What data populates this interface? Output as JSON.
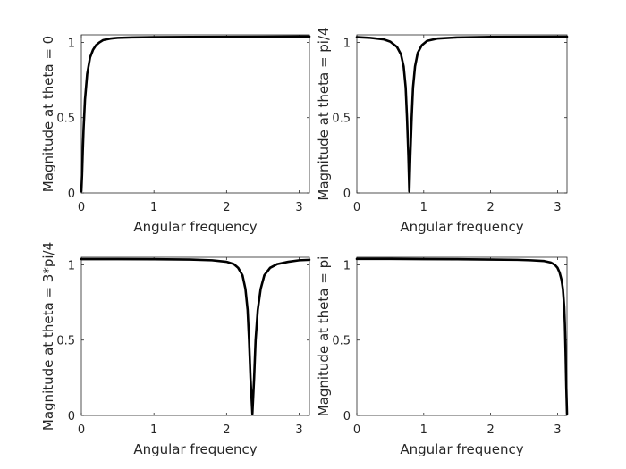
{
  "chart_data": [
    {
      "type": "line",
      "xlabel": "Angular frequency",
      "ylabel": "Magnitude at theta = 0",
      "xlim": [
        0,
        3.1416
      ],
      "ylim": [
        0,
        1.05
      ],
      "xticks": [
        0,
        1,
        2,
        3
      ],
      "yticks": [
        0,
        0.5,
        1
      ],
      "xtick_labels": [
        "0",
        "1",
        "2",
        "3"
      ],
      "ytick_labels": [
        "0",
        "0.5",
        "1"
      ],
      "grid": false,
      "series": [
        {
          "x": [
            0,
            0.01,
            0.02,
            0.03,
            0.05,
            0.08,
            0.12,
            0.16,
            0.2,
            0.25,
            0.3,
            0.4,
            0.5,
            0.7,
            1.0,
            1.5,
            2.0,
            2.5,
            3.0,
            3.1416
          ],
          "y": [
            0.01,
            0.12,
            0.28,
            0.42,
            0.62,
            0.79,
            0.9,
            0.95,
            0.98,
            1.0,
            1.015,
            1.025,
            1.03,
            1.033,
            1.035,
            1.036,
            1.037,
            1.038,
            1.039,
            1.039
          ]
        }
      ]
    },
    {
      "type": "line",
      "xlabel": "Angular frequency",
      "ylabel": "Magnitude at theta = pi/4",
      "xlim": [
        0,
        3.1416
      ],
      "ylim": [
        0,
        1.05
      ],
      "xticks": [
        0,
        1,
        2,
        3
      ],
      "yticks": [
        0,
        0.5,
        1
      ],
      "xtick_labels": [
        "0",
        "1",
        "2",
        "3"
      ],
      "ytick_labels": [
        "0",
        "0.5",
        "1"
      ],
      "grid": false,
      "series": [
        {
          "x": [
            0,
            0.2,
            0.4,
            0.5,
            0.6,
            0.66,
            0.7,
            0.73,
            0.75,
            0.77,
            0.785,
            0.8,
            0.82,
            0.84,
            0.87,
            0.91,
            0.97,
            1.05,
            1.2,
            1.5,
            2.0,
            2.5,
            3.0,
            3.1416
          ],
          "y": [
            1.035,
            1.03,
            1.02,
            1.005,
            0.97,
            0.92,
            0.84,
            0.7,
            0.5,
            0.25,
            0.01,
            0.25,
            0.5,
            0.7,
            0.84,
            0.93,
            0.98,
            1.01,
            1.025,
            1.033,
            1.036,
            1.037,
            1.038,
            1.038
          ]
        }
      ]
    },
    {
      "type": "line",
      "xlabel": "Angular frequency",
      "ylabel": "Magnitude at theta = 3*pi/4",
      "xlim": [
        0,
        3.1416
      ],
      "ylim": [
        0,
        1.05
      ],
      "xticks": [
        0,
        1,
        2,
        3
      ],
      "yticks": [
        0,
        0.5,
        1
      ],
      "xtick_labels": [
        "0",
        "1",
        "2",
        "3"
      ],
      "ytick_labels": [
        "0",
        "0.5",
        "1"
      ],
      "grid": false,
      "series": [
        {
          "x": [
            0,
            0.5,
            1.0,
            1.5,
            1.8,
            2.0,
            2.1,
            2.16,
            2.22,
            2.26,
            2.29,
            2.31,
            2.33,
            2.356,
            2.38,
            2.4,
            2.43,
            2.47,
            2.52,
            2.6,
            2.7,
            2.85,
            3.0,
            3.1416
          ],
          "y": [
            1.038,
            1.038,
            1.037,
            1.035,
            1.03,
            1.02,
            1.005,
            0.98,
            0.93,
            0.84,
            0.7,
            0.5,
            0.25,
            0.01,
            0.25,
            0.5,
            0.7,
            0.84,
            0.93,
            0.98,
            1.005,
            1.02,
            1.03,
            1.033
          ]
        }
      ]
    },
    {
      "type": "line",
      "xlabel": "Angular frequency",
      "ylabel": "Magnitude at theta = pi",
      "xlim": [
        0,
        3.1416
      ],
      "ylim": [
        0,
        1.05
      ],
      "xticks": [
        0,
        1,
        2,
        3
      ],
      "yticks": [
        0,
        0.5,
        1
      ],
      "xtick_labels": [
        "0",
        "1",
        "2",
        "3"
      ],
      "ytick_labels": [
        "0",
        "0.5",
        "1"
      ],
      "grid": false,
      "series": [
        {
          "x": [
            0,
            0.5,
            1.0,
            1.5,
            2.0,
            2.4,
            2.6,
            2.8,
            2.9,
            2.96,
            3.0,
            3.03,
            3.06,
            3.08,
            3.1,
            3.11,
            3.12,
            3.13,
            3.1416
          ],
          "y": [
            1.039,
            1.039,
            1.038,
            1.037,
            1.035,
            1.033,
            1.03,
            1.025,
            1.015,
            1.0,
            0.98,
            0.95,
            0.9,
            0.84,
            0.72,
            0.6,
            0.42,
            0.2,
            0.01
          ]
        }
      ]
    }
  ]
}
